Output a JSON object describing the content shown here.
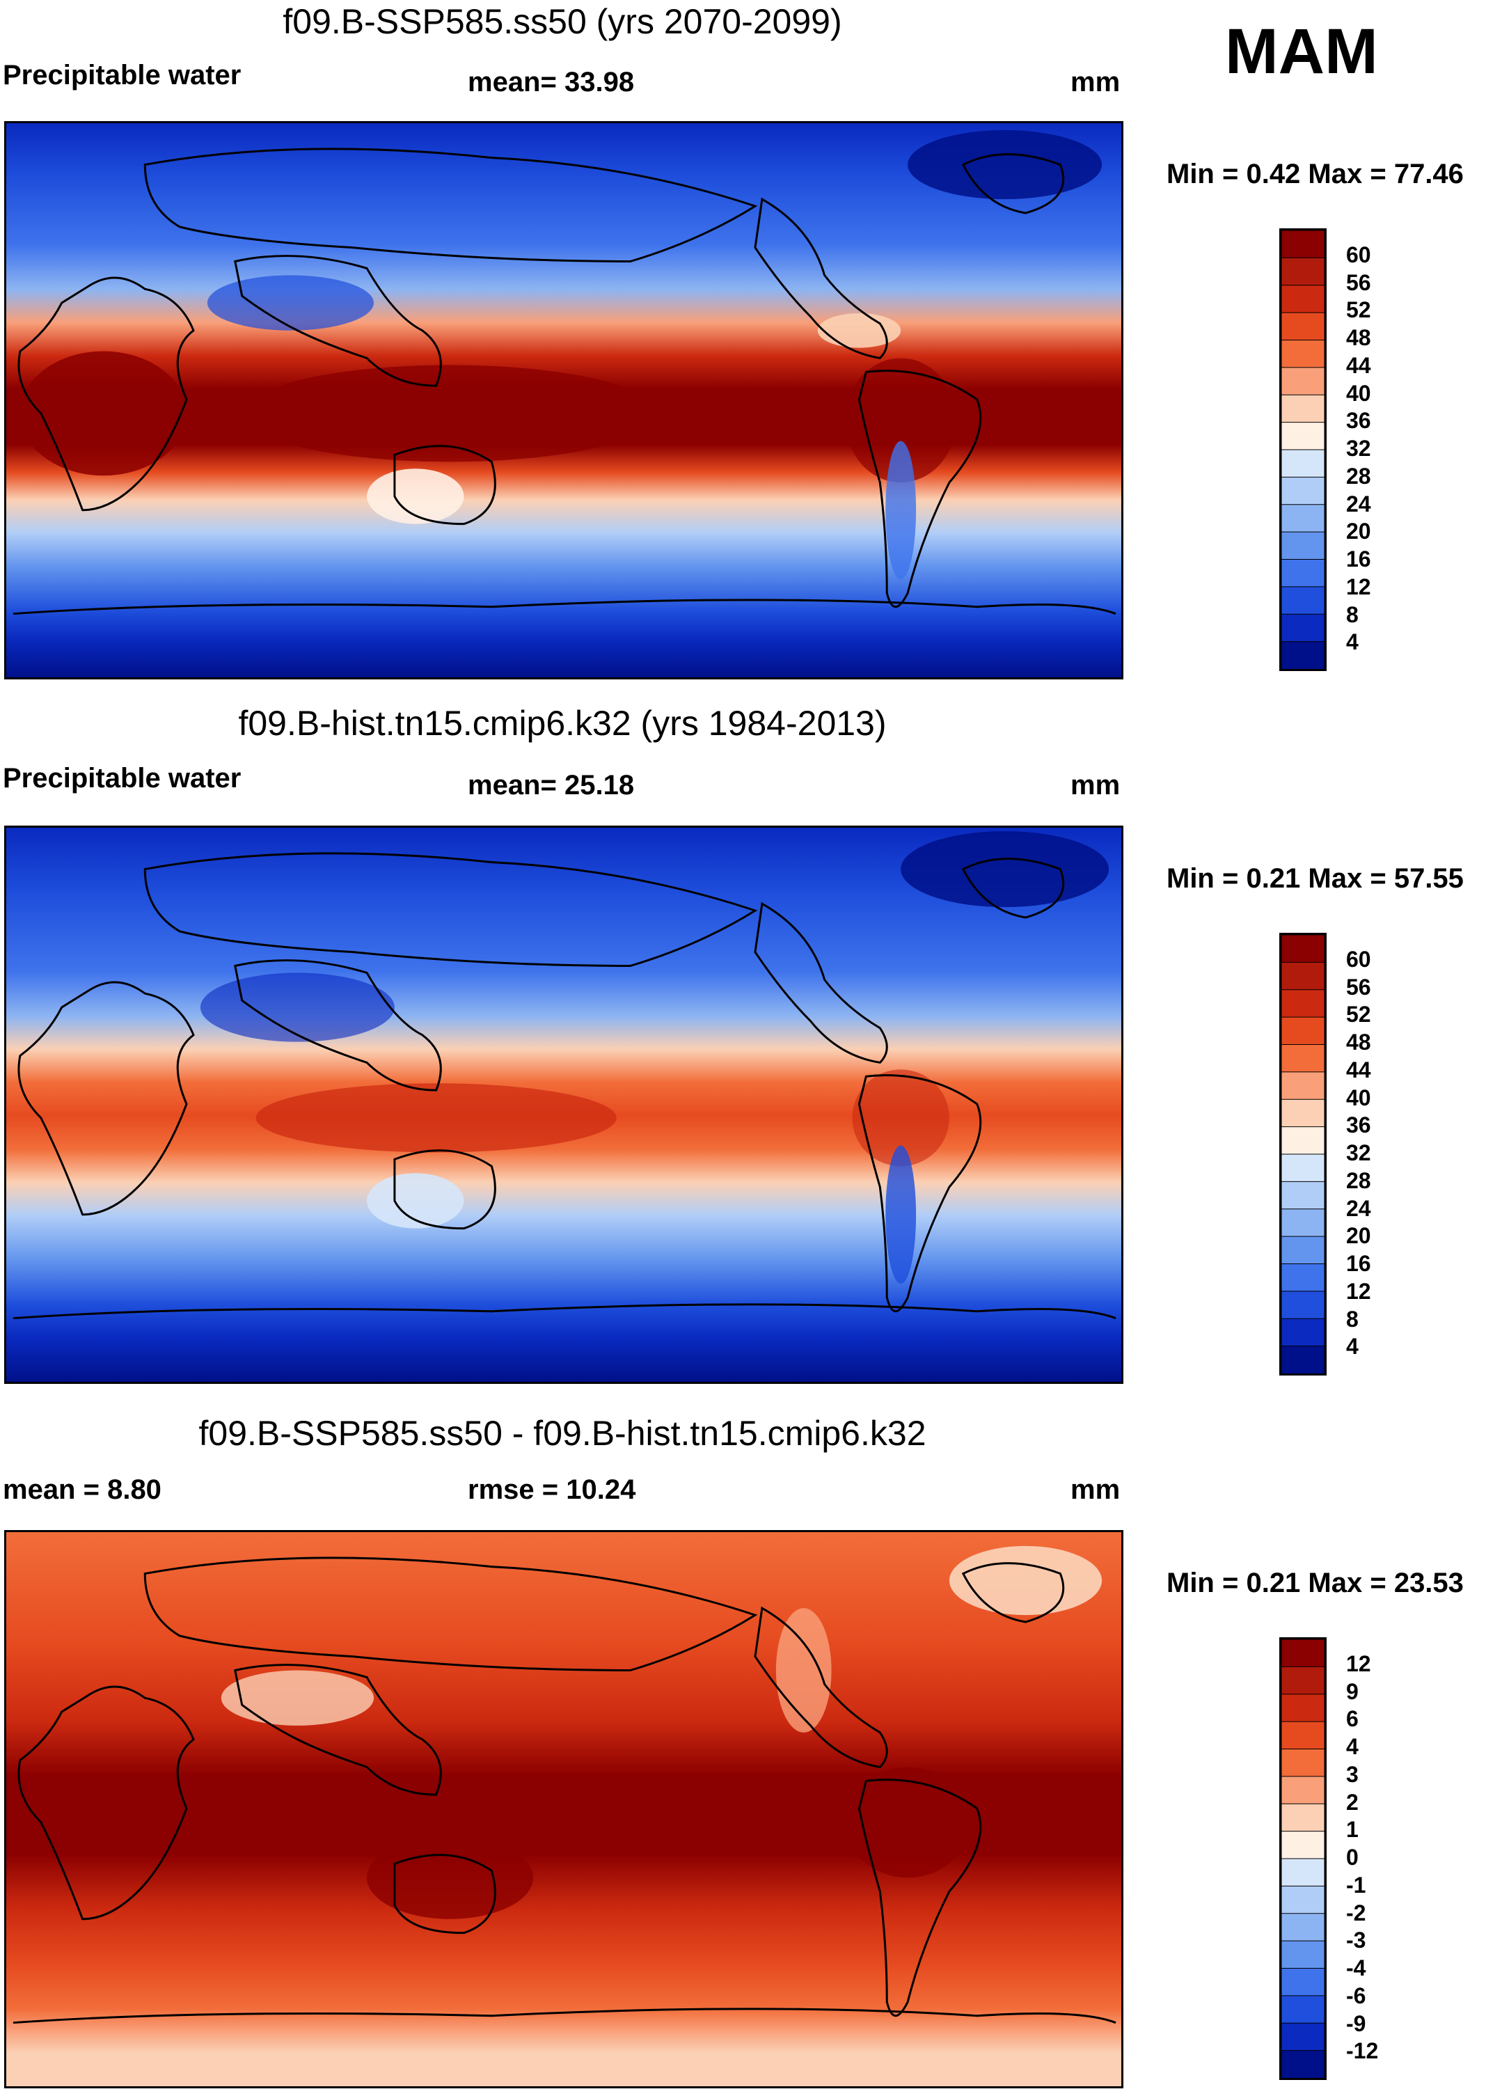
{
  "season": "MAM",
  "panels": [
    {
      "title": "f09.B-SSP585.ss50 (yrs 2070-2099)",
      "left_label": "Precipitable water",
      "mid_label": "mean=  33.98",
      "units": "mm",
      "minmax": "Min =   0.42 Max =  77.46",
      "colorbar": {
        "labels": [
          "60",
          "56",
          "52",
          "48",
          "44",
          "40",
          "36",
          "32",
          "28",
          "24",
          "20",
          "16",
          "12",
          "8",
          "4"
        ],
        "colors": [
          "#8b0000",
          "#b01b0b",
          "#cc2a10",
          "#e64b20",
          "#f26d3a",
          "#f9a07a",
          "#fbd0b4",
          "#fff0e4",
          "#d6e6fa",
          "#b0cdf7",
          "#8db4f2",
          "#6395ee",
          "#3f73ec",
          "#1f4fdc",
          "#0a2ac0",
          "#00108a"
        ]
      }
    },
    {
      "title": "f09.B-hist.tn15.cmip6.k32 (yrs 1984-2013)",
      "left_label": "Precipitable water",
      "mid_label": "mean=  25.18",
      "units": "mm",
      "minmax": "Min =   0.21 Max =  57.55",
      "colorbar": {
        "labels": [
          "60",
          "56",
          "52",
          "48",
          "44",
          "40",
          "36",
          "32",
          "28",
          "24",
          "20",
          "16",
          "12",
          "8",
          "4"
        ],
        "colors": [
          "#8b0000",
          "#b01b0b",
          "#cc2a10",
          "#e64b20",
          "#f26d3a",
          "#f9a07a",
          "#fbd0b4",
          "#fff0e4",
          "#d6e6fa",
          "#b0cdf7",
          "#8db4f2",
          "#6395ee",
          "#3f73ec",
          "#1f4fdc",
          "#0a2ac0",
          "#00108a"
        ]
      }
    },
    {
      "title": "f09.B-SSP585.ss50 - f09.B-hist.tn15.cmip6.k32",
      "left_label": "mean =   8.80",
      "mid_label": "rmse =  10.24",
      "units": "mm",
      "minmax": "Min =   0.21 Max =  23.53",
      "colorbar": {
        "labels": [
          "12",
          "9",
          "6",
          "4",
          "3",
          "2",
          "1",
          "0",
          "-1",
          "-2",
          "-3",
          "-4",
          "-6",
          "-9",
          "-12"
        ],
        "colors": [
          "#8b0000",
          "#b01b0b",
          "#cc2a10",
          "#e64b20",
          "#f26d3a",
          "#f9a07a",
          "#fbd0b4",
          "#fff0e4",
          "#d6e6fa",
          "#b0cdf7",
          "#8db4f2",
          "#6395ee",
          "#3f73ec",
          "#1f4fdc",
          "#0a2ac0",
          "#00108a"
        ]
      }
    }
  ]
}
